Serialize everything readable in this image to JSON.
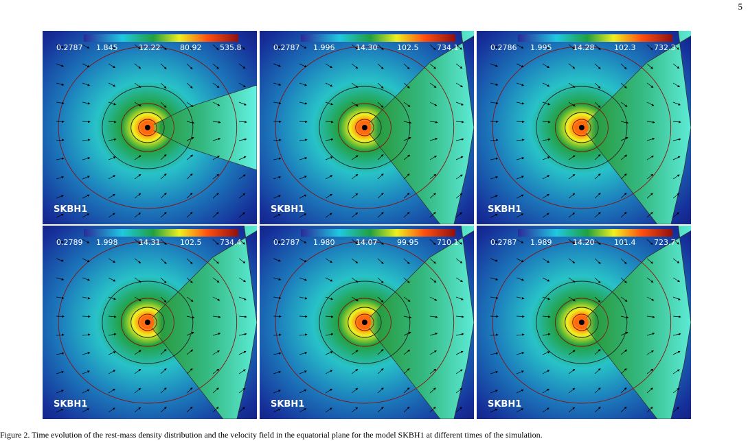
{
  "page_number": "5",
  "panels": [
    {
      "colorbar_labels": [
        "0.2787",
        "1.845",
        "12.22",
        "80.92",
        "535.8"
      ],
      "label": "SKBH1"
    },
    {
      "colorbar_labels": [
        "0.2787",
        "1.996",
        "14.30",
        "102.5",
        "734.1"
      ],
      "label": "SKBH1"
    },
    {
      "colorbar_labels": [
        "0.2786",
        "1.995",
        "14.28",
        "102.3",
        "732.3"
      ],
      "label": "SKBH1"
    },
    {
      "colorbar_labels": [
        "0.2789",
        "1.998",
        "14.31",
        "102.5",
        "734.4"
      ],
      "label": "SKBH1"
    },
    {
      "colorbar_labels": [
        "0.2787",
        "1.980",
        "14.07",
        "99.95",
        "710.1"
      ],
      "label": "SKBH1"
    },
    {
      "colorbar_labels": [
        "0.2787",
        "1.989",
        "14.20",
        "101.4",
        "723.7"
      ],
      "label": "SKBH1"
    }
  ],
  "caption": "Figure 2. Time evolution of the rest-mass density distribution and the velocity field in the equatorial plane for the model SKBH1 at different times of the simulation."
}
